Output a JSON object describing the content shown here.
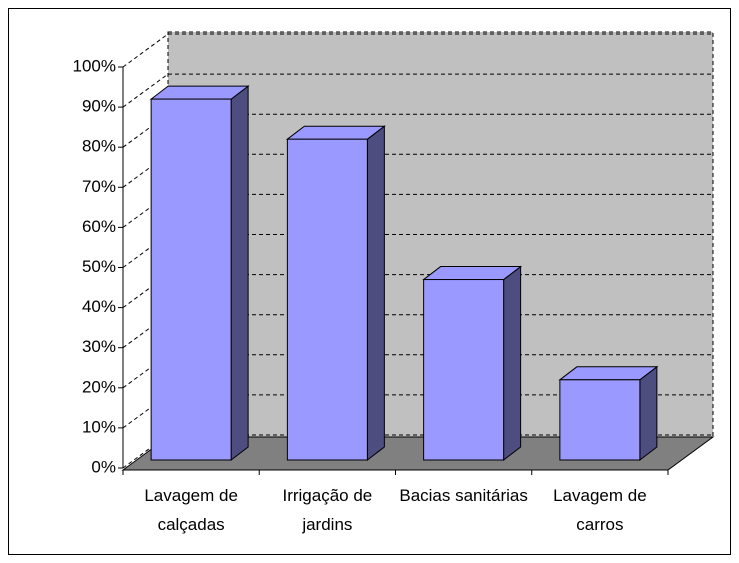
{
  "chart_data": {
    "type": "bar3d",
    "categories": [
      "Lavagem de calçadas",
      "Irrigação de jardins",
      "Bacias sanitárias",
      "Lavagem de carros"
    ],
    "values": [
      90,
      80,
      45,
      20
    ],
    "color": "#9999ff",
    "ylim": [
      0,
      100
    ],
    "yticks": [
      {
        "value": 0,
        "label": "0%"
      },
      {
        "value": 10,
        "label": "10%"
      },
      {
        "value": 20,
        "label": "20%"
      },
      {
        "value": 30,
        "label": "30%"
      },
      {
        "value": 40,
        "label": "40%"
      },
      {
        "value": 50,
        "label": "50%"
      },
      {
        "value": 60,
        "label": "60%"
      },
      {
        "value": 70,
        "label": "70%"
      },
      {
        "value": 80,
        "label": "80%"
      },
      {
        "value": 90,
        "label": "90%"
      },
      {
        "value": 100,
        "label": "100%"
      }
    ],
    "grid": true
  }
}
